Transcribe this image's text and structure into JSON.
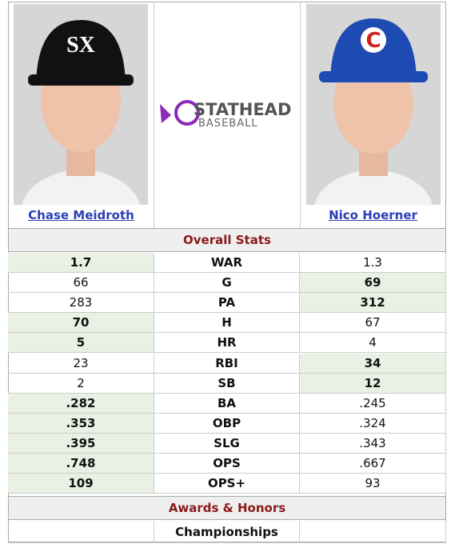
{
  "players": [
    {
      "name": "Chase Meidroth"
    },
    {
      "name": "Nico Hoerner"
    }
  ],
  "logo": {
    "title": "STATHEAD",
    "subtitle": "BASEBALL"
  },
  "sections": [
    {
      "title": "Overall Stats",
      "rows": [
        {
          "stat": "WAR",
          "left": "1.7",
          "right": "1.3",
          "highlight": "left"
        },
        {
          "stat": "G",
          "left": "66",
          "right": "69",
          "highlight": "right"
        },
        {
          "stat": "PA",
          "left": "283",
          "right": "312",
          "highlight": "right"
        },
        {
          "stat": "H",
          "left": "70",
          "right": "67",
          "highlight": "left"
        },
        {
          "stat": "HR",
          "left": "5",
          "right": "4",
          "highlight": "left"
        },
        {
          "stat": "RBI",
          "left": "23",
          "right": "34",
          "highlight": "right"
        },
        {
          "stat": "SB",
          "left": "2",
          "right": "12",
          "highlight": "right"
        },
        {
          "stat": "BA",
          "left": ".282",
          "right": ".245",
          "highlight": "left"
        },
        {
          "stat": "OBP",
          "left": ".353",
          "right": ".324",
          "highlight": "left"
        },
        {
          "stat": "SLG",
          "left": ".395",
          "right": ".343",
          "highlight": "left"
        },
        {
          "stat": "OPS",
          "left": ".748",
          "right": ".667",
          "highlight": "left"
        },
        {
          "stat": "OPS+",
          "left": "109",
          "right": "93",
          "highlight": "left"
        }
      ]
    },
    {
      "title": "Awards & Honors",
      "rows": [
        {
          "stat": "Championships"
        }
      ]
    }
  ]
}
